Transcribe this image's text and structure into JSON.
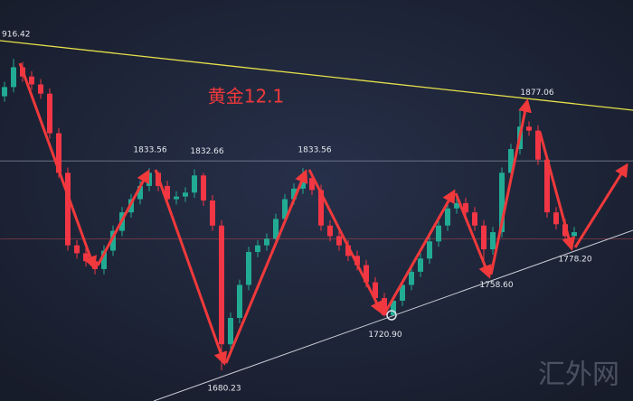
{
  "chart_data": {
    "type": "candlestick",
    "title": "黄金12.1",
    "watermark": "汇外网",
    "corner_label": "916.42",
    "ylim": [
      1657,
      1961
    ],
    "up_color": "#22ab94",
    "down_color": "#f23645",
    "hlines": [
      1839,
      1780
    ],
    "open": [
      1888,
      1895,
      1910,
      1903,
      1897,
      1890,
      1860,
      1830,
      1775,
      1769,
      1763,
      1757,
      1771,
      1786,
      1800,
      1810,
      1820,
      1830,
      1820,
      1810,
      1812,
      1815,
      1828,
      1809,
      1790,
      1700,
      1720,
      1745,
      1770,
      1775,
      1780,
      1795,
      1810,
      1818,
      1826,
      1817,
      1790,
      1782,
      1775,
      1767,
      1760,
      1747,
      1735,
      1722,
      1733,
      1745,
      1755,
      1765,
      1778,
      1790,
      1803,
      1807,
      1800,
      1790,
      1772,
      1785,
      1830,
      1848,
      1865,
      1862,
      1840,
      1800,
      1791,
      1782
    ],
    "high": [
      1899,
      1916.42,
      1914,
      1907,
      1901,
      1894,
      1864,
      1834,
      1779,
      1773,
      1767,
      1775,
      1790,
      1804,
      1814,
      1824,
      1833.56,
      1831,
      1824,
      1816,
      1819,
      1832.66,
      1830,
      1813,
      1794,
      1724,
      1749,
      1774,
      1779,
      1784,
      1799,
      1814,
      1822,
      1833.56,
      1830,
      1821,
      1794,
      1786,
      1779,
      1771,
      1764,
      1751,
      1739,
      1737,
      1749,
      1759,
      1769,
      1782,
      1794,
      1807,
      1811,
      1811,
      1804,
      1794,
      1789,
      1834,
      1852,
      1877.06,
      1869,
      1866,
      1844,
      1804,
      1795,
      1789
    ],
    "low": [
      1884,
      1891,
      1899,
      1893,
      1886,
      1856,
      1826,
      1771,
      1765,
      1759,
      1753,
      1753,
      1767,
      1782,
      1796,
      1806,
      1816,
      1816,
      1806,
      1806,
      1808,
      1811,
      1805,
      1786,
      1680.23,
      1696,
      1716,
      1741,
      1766,
      1771,
      1776,
      1791,
      1806,
      1814,
      1813,
      1786,
      1778,
      1771,
      1763,
      1756,
      1743,
      1731,
      1720.9,
      1724,
      1729,
      1741,
      1751,
      1761,
      1774,
      1786,
      1799,
      1796,
      1786,
      1758.6,
      1768,
      1781,
      1826,
      1844,
      1858,
      1836,
      1796,
      1787,
      1778.2,
      1780
    ],
    "close": [
      1895,
      1910,
      1903,
      1897,
      1890,
      1860,
      1830,
      1775,
      1769,
      1763,
      1757,
      1771,
      1786,
      1800,
      1810,
      1820,
      1830,
      1820,
      1810,
      1812,
      1815,
      1828,
      1809,
      1790,
      1700,
      1720,
      1745,
      1770,
      1775,
      1780,
      1795,
      1810,
      1818,
      1826,
      1817,
      1790,
      1782,
      1775,
      1767,
      1760,
      1747,
      1735,
      1722,
      1733,
      1745,
      1755,
      1765,
      1778,
      1790,
      1803,
      1807,
      1800,
      1790,
      1772,
      1785,
      1830,
      1848,
      1865,
      1862,
      1840,
      1800,
      1791,
      1782,
      1785
    ],
    "annotations": [
      {
        "value": 1833.56,
        "label": "1833.56"
      },
      {
        "value": 1832.66,
        "label": "1832.66"
      },
      {
        "value": 1833.56,
        "label": "1833.56"
      },
      {
        "value": 1877.06,
        "label": "1877.06"
      },
      {
        "value": 1720.9,
        "label": "1720.90"
      },
      {
        "value": 1758.6,
        "label": "1758.60"
      },
      {
        "value": 1778.2,
        "label": "1778.20"
      },
      {
        "value": 1680.23,
        "label": "1680.23"
      }
    ]
  }
}
